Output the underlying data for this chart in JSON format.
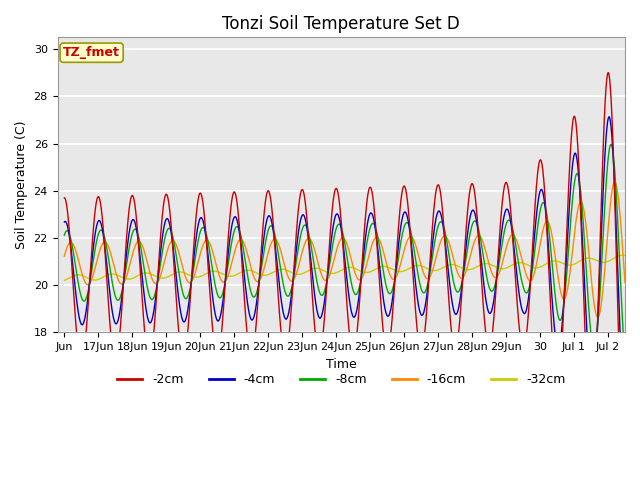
{
  "title": "Tonzi Soil Temperature Set D",
  "xlabel": "Time",
  "ylabel": "Soil Temperature (C)",
  "ylim": [
    18,
    30.5
  ],
  "ytick_values": [
    18,
    20,
    22,
    24,
    26,
    28,
    30
  ],
  "xtick_labels": [
    "Jun",
    "17Jun",
    "18Jun",
    "19Jun",
    "20Jun",
    "21Jun",
    "22Jun",
    "23Jun",
    "24Jun",
    "25Jun",
    "26Jun",
    "27Jun",
    "28Jun",
    "29Jun",
    "30",
    "Jul 1",
    "Jul 2"
  ],
  "legend_labels": [
    "-2cm",
    "-4cm",
    "-8cm",
    "-16cm",
    "-32cm"
  ],
  "legend_colors": [
    "#cc0000",
    "#0000cc",
    "#00aa00",
    "#ff8800",
    "#cccc00"
  ],
  "line_colors": {
    "d2cm": "#cc0000",
    "d4cm": "#0000cc",
    "d8cm": "#00aa00",
    "d16cm": "#ff8800",
    "d32cm": "#cccc00"
  },
  "annotation_text": "TZ_fmet",
  "annotation_color": "#cc0000",
  "annotation_bg": "#ffffcc",
  "annotation_edge": "#999900",
  "background_color": "#e8e8e8",
  "grid_color": "#ffffff",
  "title_fontsize": 12,
  "axis_fontsize": 9,
  "tick_fontsize": 8,
  "figsize": [
    6.4,
    4.8
  ],
  "dpi": 100
}
